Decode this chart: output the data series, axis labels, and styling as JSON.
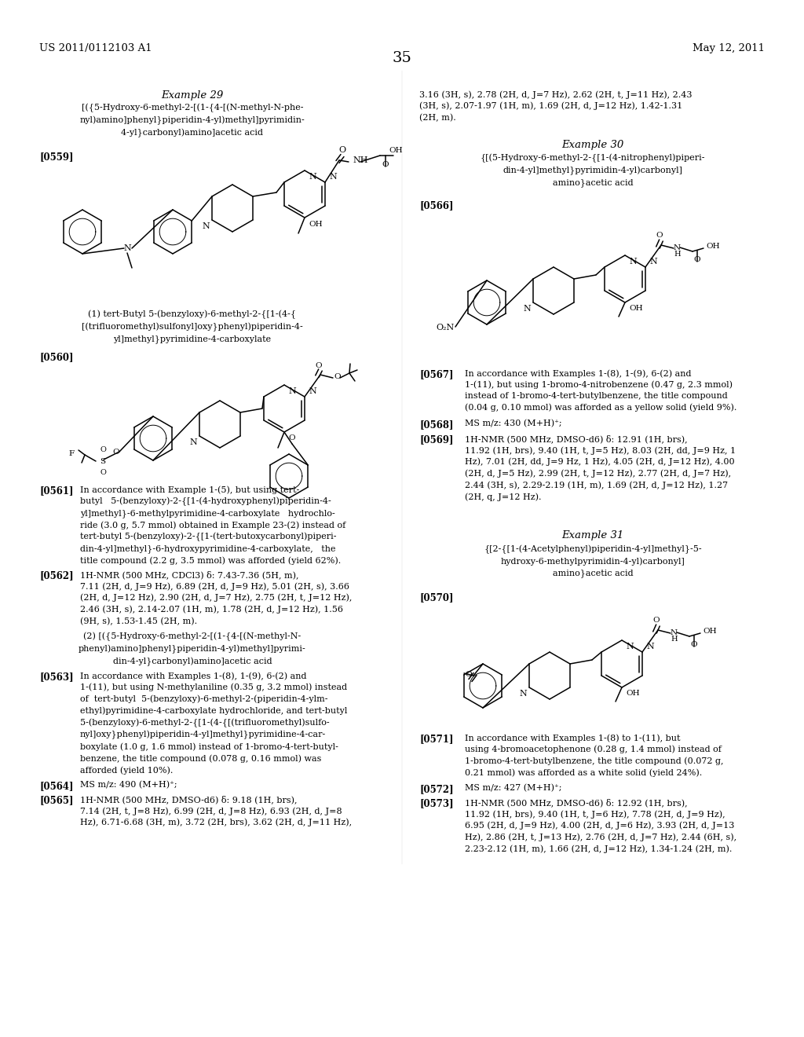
{
  "background_color": "#ffffff",
  "page_width": 10.24,
  "page_height": 13.2,
  "header_left": "US 2011/0112103 A1",
  "header_right": "May 12, 2011",
  "page_number": "35",
  "body_fontsize": 8.5,
  "label_fontsize": 8.5,
  "title_fontsize": 9.5,
  "header_fontsize": 9.5,
  "page_num_fontsize": 14
}
